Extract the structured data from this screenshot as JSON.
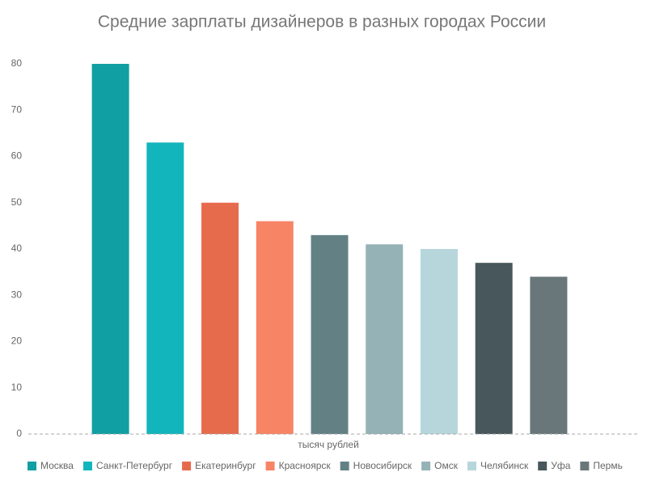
{
  "chart_data": {
    "type": "bar",
    "title": "Средние зарплаты дизайнеров в разных городах России",
    "x_label": "тысяч рублей",
    "categories": [
      "Москва",
      "Санкт-Петербург",
      "Екатеринбург",
      "Красноярск",
      "Новосибирск",
      "Омск",
      "Челябинск",
      "Уфа",
      "Пермь"
    ],
    "values": [
      80,
      63,
      50,
      46,
      43,
      41,
      40,
      37,
      34
    ],
    "colors": [
      "#109fa3",
      "#12b5bc",
      "#e66b4d",
      "#f88466",
      "#638185",
      "#95b2b6",
      "#b7d6db",
      "#47575c",
      "#69777a"
    ],
    "ylim": [
      0,
      80
    ],
    "yticks": [
      0,
      10,
      20,
      30,
      40,
      50,
      60,
      70,
      80
    ],
    "grid": false,
    "legend": "bottom"
  }
}
